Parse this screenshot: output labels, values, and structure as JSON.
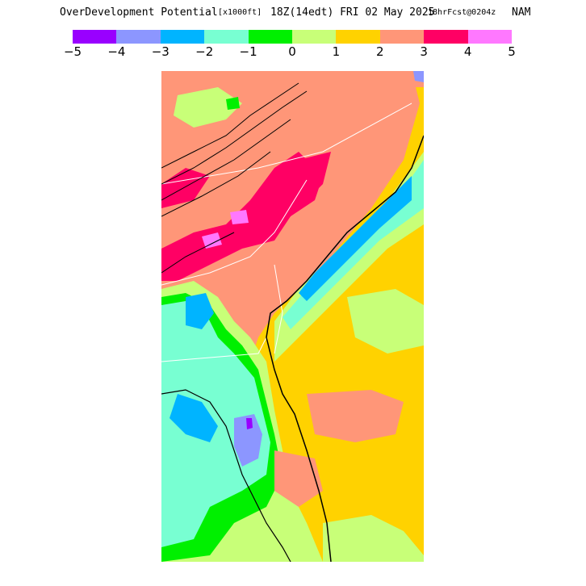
{
  "title": {
    "product": "OverDevelopment Potential",
    "units": "[x1000ft]",
    "valid": "18Z(14edt) FRI 02 May 2025",
    "forecast": "18hrFcst@0204z",
    "model": "NAM"
  },
  "legend": {
    "ticks": [
      "−5",
      "−4",
      "−3",
      "−2",
      "−1",
      "0",
      "1",
      "2",
      "3",
      "4",
      "5"
    ],
    "colors": [
      "#9900ff",
      "#8c96ff",
      "#00b4ff",
      "#78ffd2",
      "#00f000",
      "#c8ff78",
      "#ffd200",
      "#ff9678",
      "#ff0064",
      "#ff78ff"
    ]
  },
  "map": {
    "background": "#ffd200"
  }
}
